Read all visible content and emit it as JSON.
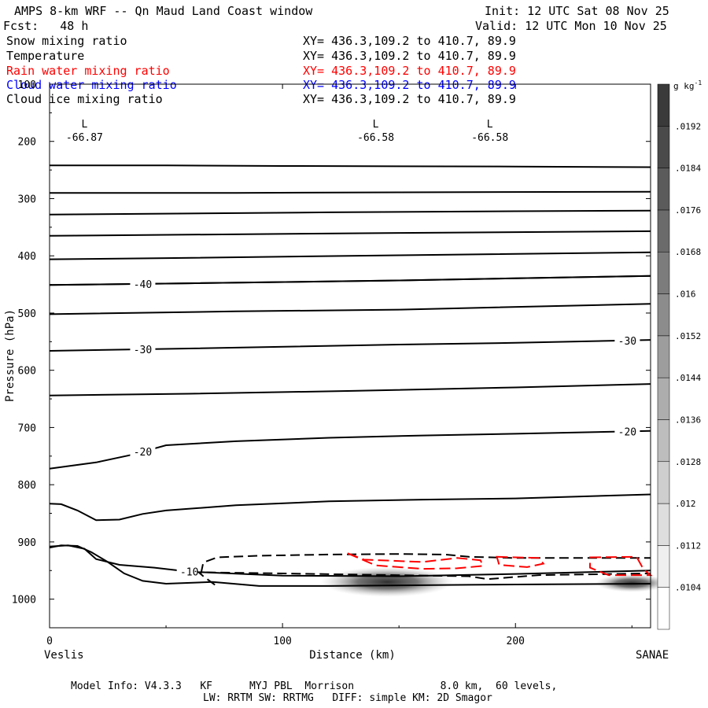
{
  "header": {
    "title": "AMPS 8-km WRF -- Qn Maud Land Coast window",
    "forecast": "Fcst:   48 h",
    "init": "Init: 12 UTC Sat 08 Nov 25",
    "valid": "Valid: 12 UTC Mon 10 Nov 25"
  },
  "legend": [
    {
      "name": "Snow mixing ratio",
      "xy": "XY= 436.3,109.2 to 410.7, 89.9",
      "color": "#000000"
    },
    {
      "name": "Temperature",
      "xy": "XY= 436.3,109.2 to 410.7, 89.9",
      "color": "#000000"
    },
    {
      "name": "Rain water mixing ratio",
      "xy": "XY= 436.3,109.2 to 410.7, 89.9",
      "color": "#ff0000"
    },
    {
      "name": "Cloud water mixing ratio",
      "xy": "XY= 436.3,109.2 to 410.7, 89.9",
      "color": "#0000ff"
    },
    {
      "name": "Cloud ice mixing ratio",
      "xy": "XY= 436.3,109.2 to 410.7, 89.9",
      "color": "#000000"
    }
  ],
  "footer": {
    "line1": "Model Info: V4.3.3   KF      MYJ PBL  Morrison              8.0 km,  60 levels,",
    "line2": "LW: RRTM SW: RRTMG   DIFF: simple KM: 2D Smagor"
  },
  "chart_data": {
    "type": "contour cross-section",
    "xlabel": "Distance (km)",
    "ylabel": "Pressure (hPa)",
    "xlim": [
      0,
      258
    ],
    "ylim": [
      1050,
      100
    ],
    "xticks": [
      0,
      100,
      200
    ],
    "yticks": [
      100,
      200,
      300,
      400,
      500,
      600,
      700,
      800,
      900,
      1000
    ],
    "left_endpoint": "Veslis",
    "right_endpoint": "SANAE",
    "colorbar": {
      "label": "g kg",
      "label_sup": "-1",
      "levels": [
        ".0104",
        ".0112",
        ".012",
        ".0128",
        ".0136",
        ".0144",
        ".0152",
        ".016",
        ".0168",
        ".0176",
        ".0184",
        ".0192"
      ]
    },
    "low_markers": [
      {
        "x": 15,
        "p": 170,
        "label": "L",
        "value": "-66.87"
      },
      {
        "x": 140,
        "p": 170,
        "label": "L",
        "value": "-66.58"
      },
      {
        "x": 189,
        "p": 170,
        "label": "L",
        "value": "-66.58"
      }
    ],
    "temperature_contours": [
      {
        "points": [
          [
            0,
            242
          ],
          [
            50,
            242
          ],
          [
            100,
            243
          ],
          [
            150,
            243.5
          ],
          [
            200,
            244
          ],
          [
            258,
            245
          ]
        ]
      },
      {
        "points": [
          [
            0,
            290
          ],
          [
            80,
            290
          ],
          [
            150,
            289
          ],
          [
            258,
            288
          ]
        ]
      },
      {
        "points": [
          [
            0,
            328
          ],
          [
            60,
            326
          ],
          [
            120,
            324
          ],
          [
            200,
            322
          ],
          [
            258,
            321
          ]
        ]
      },
      {
        "points": [
          [
            0,
            365
          ],
          [
            60,
            363
          ],
          [
            150,
            360
          ],
          [
            258,
            357
          ]
        ]
      },
      {
        "points": [
          [
            0,
            406
          ],
          [
            50,
            404
          ],
          [
            150,
            399
          ],
          [
            258,
            394
          ]
        ]
      },
      {
        "points": [
          [
            0,
            451
          ],
          [
            60,
            448
          ],
          [
            150,
            443
          ],
          [
            258,
            435
          ]
        ]
      },
      {
        "label": "-40",
        "label_x": 40,
        "points": [
          [
            0,
            451
          ],
          [
            60,
            448
          ],
          [
            150,
            443
          ],
          [
            258,
            435
          ]
        ]
      },
      {
        "points": [
          [
            0,
            502
          ],
          [
            80,
            497
          ],
          [
            150,
            494
          ],
          [
            258,
            484
          ]
        ]
      },
      {
        "label": "-30",
        "label_x": 40,
        "label_x2": 248,
        "points": [
          [
            0,
            566
          ],
          [
            60,
            562
          ],
          [
            150,
            555
          ],
          [
            200,
            552
          ],
          [
            258,
            547
          ]
        ]
      },
      {
        "points": [
          [
            0,
            644
          ],
          [
            60,
            641
          ],
          [
            130,
            636
          ],
          [
            200,
            630
          ],
          [
            258,
            624
          ]
        ]
      },
      {
        "label": "-20",
        "label_x": 40,
        "label_x2": 248,
        "points": [
          [
            0,
            772
          ],
          [
            20,
            761
          ],
          [
            35,
            748
          ],
          [
            50,
            731
          ],
          [
            80,
            724
          ],
          [
            120,
            718
          ],
          [
            160,
            714
          ],
          [
            200,
            711
          ],
          [
            258,
            706
          ]
        ]
      },
      {
        "points": [
          [
            0,
            833
          ],
          [
            5,
            834
          ],
          [
            12,
            845
          ],
          [
            20,
            862
          ],
          [
            30,
            861
          ],
          [
            40,
            851
          ],
          [
            50,
            845
          ],
          [
            80,
            836
          ],
          [
            120,
            829
          ],
          [
            160,
            826
          ],
          [
            200,
            824
          ],
          [
            258,
            817
          ]
        ]
      },
      {
        "label": "-10",
        "label_x": 60,
        "points": [
          [
            0,
            908
          ],
          [
            8,
            906
          ],
          [
            15,
            912
          ],
          [
            20,
            930
          ],
          [
            30,
            940
          ],
          [
            45,
            945
          ],
          [
            60,
            952
          ],
          [
            100,
            959
          ],
          [
            150,
            960
          ],
          [
            200,
            956
          ],
          [
            258,
            950
          ]
        ]
      },
      {
        "points": [
          [
            0,
            910
          ],
          [
            5,
            906
          ],
          [
            12,
            907
          ],
          [
            18,
            918
          ],
          [
            25,
            935
          ],
          [
            32,
            955
          ],
          [
            40,
            968
          ],
          [
            50,
            973
          ],
          [
            70,
            970
          ],
          [
            90,
            977
          ],
          [
            120,
            977
          ],
          [
            180,
            975
          ],
          [
            258,
            973
          ]
        ]
      }
    ],
    "cloud_ice_contour": {
      "dashed": true,
      "points": [
        [
          65,
          955
        ],
        [
          66,
          936
        ],
        [
          72,
          927
        ],
        [
          90,
          924
        ],
        [
          120,
          922
        ],
        [
          150,
          921
        ],
        [
          170,
          922
        ],
        [
          180,
          926
        ],
        [
          200,
          928
        ],
        [
          258,
          928
        ]
      ]
    },
    "cloud_ice_lower": {
      "dashed": true,
      "points": [
        [
          71,
          975
        ],
        [
          66,
          960
        ],
        [
          64,
          953
        ],
        [
          180,
          960
        ],
        [
          188,
          965
        ],
        [
          210,
          958
        ],
        [
          258,
          955
        ]
      ]
    },
    "rain_contours": [
      {
        "points": [
          [
            128,
            920
          ],
          [
            135,
            931
          ],
          [
            160,
            935
          ],
          [
            175,
            928
          ],
          [
            185,
            932
          ],
          [
            186,
            942
          ],
          [
            175,
            946
          ],
          [
            160,
            947
          ],
          [
            140,
            941
          ],
          [
            128,
            920
          ]
        ]
      },
      {
        "points": [
          [
            192,
            926
          ],
          [
            210,
            928
          ],
          [
            212,
            938
          ],
          [
            205,
            944
          ],
          [
            193,
            940
          ],
          [
            192,
            926
          ]
        ]
      },
      {
        "points": [
          [
            232,
            927
          ],
          [
            252,
            926
          ],
          [
            255,
            948
          ],
          [
            258,
            958
          ],
          [
            240,
            958
          ],
          [
            232,
            945
          ],
          [
            232,
            927
          ]
        ]
      }
    ],
    "snow_blobs": [
      {
        "x": 145,
        "p": 970,
        "rx_km": 22,
        "ry_hPa": 20,
        "max": 0.0116
      },
      {
        "x": 250,
        "p": 972,
        "rx_km": 12,
        "ry_hPa": 12,
        "max": 0.0108
      }
    ]
  }
}
